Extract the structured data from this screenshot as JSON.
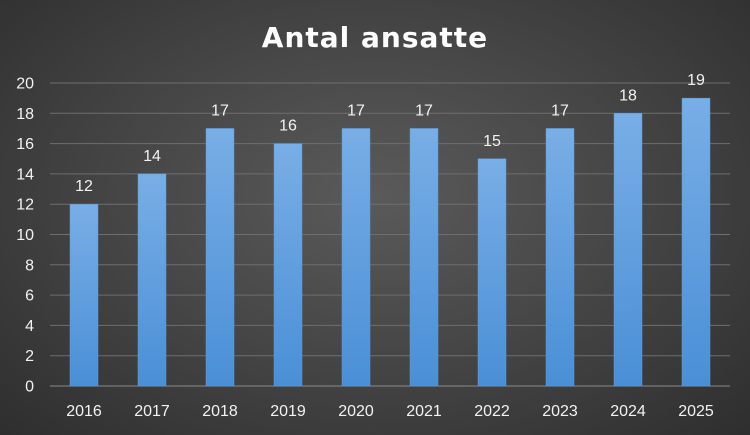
{
  "chart_data": {
    "type": "bar",
    "title": "Antal ansatte",
    "xlabel": "",
    "ylabel": "",
    "categories": [
      "2016",
      "2017",
      "2018",
      "2019",
      "2020",
      "2021",
      "2022",
      "2023",
      "2024",
      "2025"
    ],
    "values": [
      12,
      14,
      17,
      16,
      17,
      17,
      15,
      17,
      18,
      19
    ],
    "ylim": [
      0,
      20
    ],
    "yticks": [
      0,
      2,
      4,
      6,
      8,
      10,
      12,
      14,
      16,
      18,
      20
    ],
    "grid": true,
    "legend": "none",
    "data_labels": true,
    "colors": {
      "bar_top": "#79aee6",
      "bar_bottom": "#4a8fd6",
      "bar_stroke": "#5b9bdd"
    }
  }
}
